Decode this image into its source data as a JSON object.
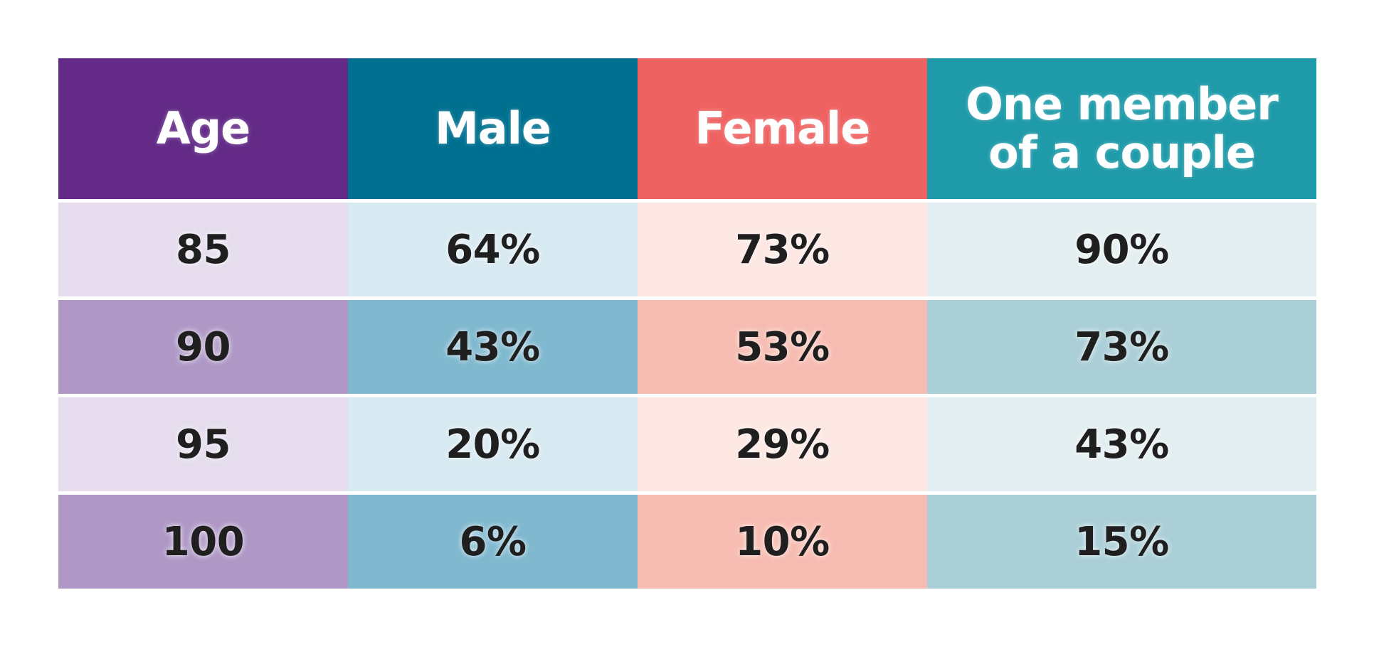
{
  "chart_data": {
    "type": "table",
    "columns": [
      "Age",
      "Male",
      "Female",
      "One member\nof a couple"
    ],
    "rows": [
      {
        "age": "85",
        "male": "64%",
        "female": "73%",
        "couple": "90%"
      },
      {
        "age": "90",
        "male": "43%",
        "female": "53%",
        "couple": "73%"
      },
      {
        "age": "95",
        "male": "20%",
        "female": "29%",
        "couple": "43%"
      },
      {
        "age": "100",
        "male": "6%",
        "female": "10%",
        "couple": "15%"
      }
    ],
    "colors": {
      "age_header": "#632b87",
      "male_header": "#007090",
      "female_header": "#ef6262",
      "couple_header": "#1e9aa8",
      "age_light": "#e5dced",
      "age_dark": "#af98c6",
      "male_light": "#d7e9f1",
      "male_dark": "#7fb8cf",
      "female_light": "#fde7e3",
      "female_dark": "#f7bcb1",
      "couple_light": "#e3eef1",
      "couple_dark": "#abcfd7"
    }
  }
}
